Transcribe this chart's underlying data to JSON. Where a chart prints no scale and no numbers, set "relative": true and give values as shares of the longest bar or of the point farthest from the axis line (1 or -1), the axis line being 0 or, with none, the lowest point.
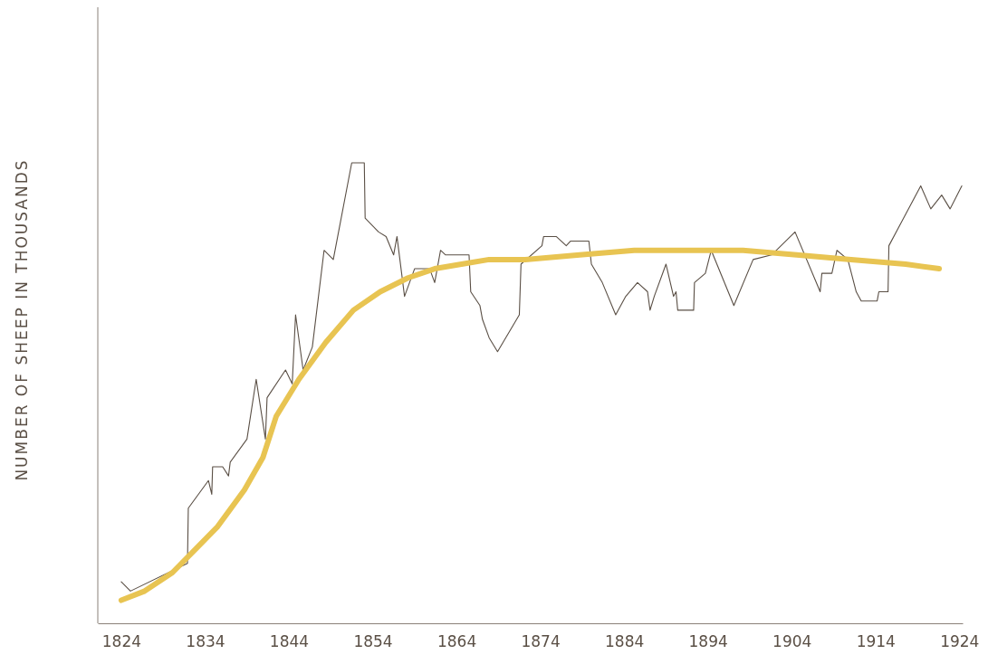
{
  "chart_data": {
    "type": "line",
    "relative": true,
    "ylabel": "NUMBER OF SHEEP IN THOUSANDS",
    "xlim": [
      1821.2,
      1924.4
    ],
    "xticks": [
      1824,
      1834,
      1844,
      1854,
      1864,
      1874,
      1884,
      1894,
      1904,
      1914,
      1924
    ],
    "grid": false,
    "marker": "none",
    "line_style": "solid",
    "series": [
      {
        "color": "#5a4f45",
        "x": [
          1824.0,
          1825.1,
          1831.9,
          1832.0,
          1834.4,
          1834.8,
          1834.9,
          1836.1,
          1836.8,
          1837.0,
          1839.0,
          1840.1,
          1841.2,
          1841.4,
          1843.6,
          1844.4,
          1844.8,
          1845.7,
          1846.8,
          1848.2,
          1849.3,
          1851.5,
          1853.0,
          1853.1,
          1854.7,
          1855.6,
          1856.5,
          1856.9,
          1857.8,
          1859.0,
          1860.8,
          1861.4,
          1862.1,
          1862.7,
          1865.5,
          1865.7,
          1866.8,
          1867.1,
          1867.9,
          1868.9,
          1871.5,
          1871.7,
          1874.2,
          1874.4,
          1875.9,
          1877.1,
          1877.6,
          1879.8,
          1880.1,
          1881.4,
          1883.0,
          1884.2,
          1885.6,
          1886.8,
          1887.1,
          1887.6,
          1889.0,
          1889.9,
          1890.2,
          1890.4,
          1892.3,
          1892.4,
          1893.7,
          1894.4,
          1897.1,
          1899.4,
          1901.6,
          1904.4,
          1907.4,
          1907.6,
          1908.8,
          1909.4,
          1910.7,
          1911.7,
          1912.3,
          1914.2,
          1914.4,
          1915.5,
          1915.6,
          1919.4,
          1920.6,
          1921.9,
          1922.9,
          1924.3
        ],
        "values": [
          0.09,
          0.07,
          0.13,
          0.25,
          0.31,
          0.28,
          0.34,
          0.34,
          0.32,
          0.35,
          0.4,
          0.53,
          0.4,
          0.49,
          0.55,
          0.52,
          0.67,
          0.55,
          0.6,
          0.81,
          0.79,
          1,
          1,
          0.88,
          0.85,
          0.84,
          0.8,
          0.84,
          0.71,
          0.77,
          0.77,
          0.74,
          0.81,
          0.8,
          0.8,
          0.72,
          0.69,
          0.66,
          0.62,
          0.59,
          0.67,
          0.78,
          0.82,
          0.84,
          0.84,
          0.82,
          0.83,
          0.83,
          0.78,
          0.74,
          0.67,
          0.71,
          0.74,
          0.72,
          0.68,
          0.71,
          0.78,
          0.71,
          0.72,
          0.68,
          0.68,
          0.74,
          0.76,
          0.81,
          0.69,
          0.79,
          0.8,
          0.85,
          0.72,
          0.76,
          0.76,
          0.81,
          0.79,
          0.72,
          0.7,
          0.7,
          0.72,
          0.72,
          0.82,
          0.95,
          0.9,
          0.93,
          0.9,
          0.95
        ]
      },
      {
        "color": "#e8c452",
        "x": [
          1824.0,
          1826.8,
          1830.1,
          1832.8,
          1835.5,
          1838.7,
          1840.9,
          1842.5,
          1845.2,
          1848.4,
          1851.7,
          1854.9,
          1858.2,
          1861.4,
          1864.6,
          1867.9,
          1872.2,
          1878.7,
          1885.2,
          1891.7,
          1898.2,
          1904.6,
          1911.1,
          1917.6,
          1921.6
        ],
        "values": [
          0.05,
          0.07,
          0.11,
          0.16,
          0.21,
          0.29,
          0.36,
          0.45,
          0.53,
          0.61,
          0.68,
          0.72,
          0.75,
          0.77,
          0.78,
          0.79,
          0.79,
          0.8,
          0.81,
          0.81,
          0.81,
          0.8,
          0.79,
          0.78,
          0.77
        ]
      }
    ]
  }
}
